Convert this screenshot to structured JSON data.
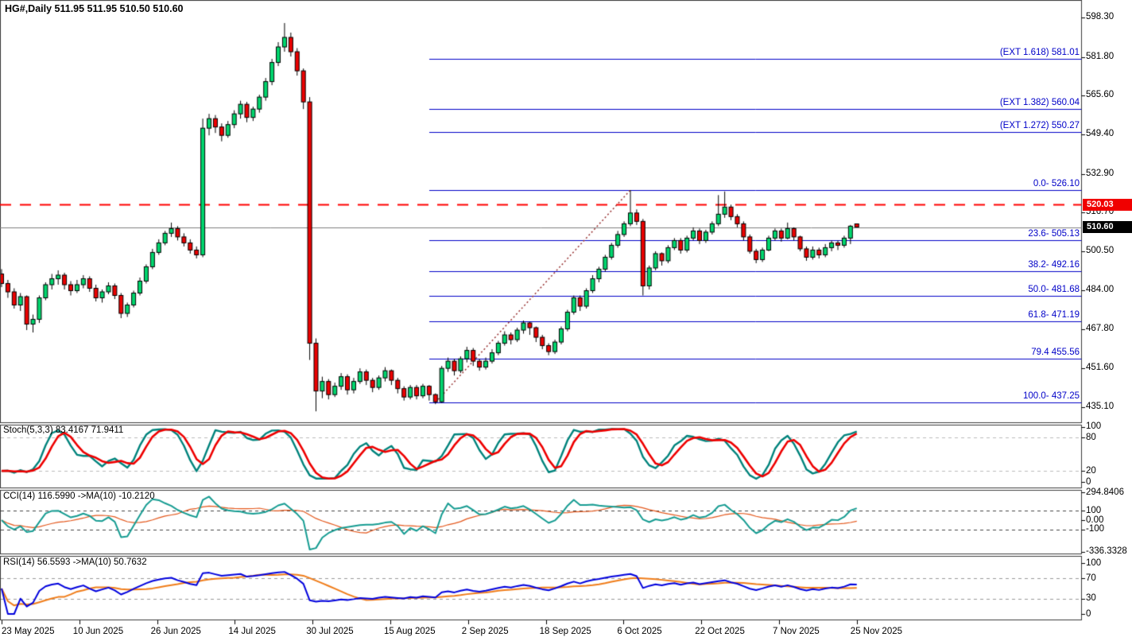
{
  "window": {
    "title_quote": "HG#,Daily  511.95 511.95 510.50 510.60"
  },
  "colors": {
    "bull": "#00d66e",
    "bear": "#ec0000",
    "candle_border": "#000000",
    "fib_line": "#0000c8",
    "resistance_line": "#ff0000",
    "current_line": "#808080",
    "trendline": "#993333",
    "stoch_main": "#00837c",
    "stoch_signal": "#ee0000",
    "cci_main": "#169c92",
    "cci_ma": "#e4571b",
    "rsi_main": "#0202dd",
    "rsi_ma": "#f07d1a",
    "badge_red_bg": "#f00000",
    "badge_black_bg": "#000000"
  },
  "price_axis": {
    "ticks": [
      "598.30",
      "581.80",
      "565.60",
      "549.40",
      "532.90",
      "516.70",
      "500.50",
      "484.00",
      "467.80",
      "451.60",
      "435.10"
    ],
    "badge_red": "520.03",
    "badge_current": "510.60"
  },
  "time_axis": {
    "labels": [
      "23 May 2025",
      "10 Jun 2025",
      "26 Jun 2025",
      "14 Jul 2025",
      "30 Jul 2025",
      "15 Aug 2025",
      "2 Sep 2025",
      "18 Sep 2025",
      "6 Oct 2025",
      "22 Oct 2025",
      "7 Nov 2025",
      "25 Nov 2025"
    ]
  },
  "fib": {
    "levels": [
      {
        "label": "(EXT 1.618)  581.01",
        "price": 581.01
      },
      {
        "label": "(EXT 1.382)  560.04",
        "price": 560.04
      },
      {
        "label": "(EXT 1.272)  550.27",
        "price": 550.27
      },
      {
        "label": "0.0- 526.10",
        "price": 526.1
      },
      {
        "label": "23.6- 505.13",
        "price": 505.13
      },
      {
        "label": "38.2- 492.16",
        "price": 492.16
      },
      {
        "label": "50.0- 481.68",
        "price": 481.68
      },
      {
        "label": "61.8- 471.19",
        "price": 471.19
      },
      {
        "label": "79.4 455.56",
        "price": 455.56
      },
      {
        "label": "100.0- 437.25",
        "price": 437.25
      }
    ]
  },
  "hlines": {
    "resistance_dashed_price": 520.03,
    "current_price": 510.6
  },
  "panels": {
    "stoch": {
      "header": "Stoch(5,3,3) 83.4167 71.9411",
      "axis": [
        "100",
        "80",
        "20",
        "0"
      ],
      "level_lines": [
        80,
        20
      ]
    },
    "cci": {
      "header": "CCI(14) 116.5990  ->MA(10) -10.2120",
      "axis": [
        "294.8406",
        "100",
        "0.00",
        "-100",
        "-336.3328"
      ],
      "level_lines": [
        100,
        -100
      ]
    },
    "rsi": {
      "header": "RSI(14) 56.5593  ->MA(10) 50.7632",
      "axis": [
        "100",
        "70",
        "30",
        "0"
      ],
      "level_lines": [
        70,
        30
      ]
    }
  },
  "chart_data": {
    "type": "candlestick",
    "symbol": "HG#",
    "timeframe": "Daily",
    "quote": {
      "open": 511.95,
      "high": 511.95,
      "low": 510.5,
      "close": 510.6
    },
    "x_labels": [
      "23 May 2025",
      "10 Jun 2025",
      "26 Jun 2025",
      "14 Jul 2025",
      "30 Jul 2025",
      "15 Aug 2025",
      "2 Sep 2025",
      "18 Sep 2025",
      "6 Oct 2025",
      "22 Oct 2025",
      "7 Nov 2025",
      "25 Nov 2025"
    ],
    "y_range": [
      428,
      601
    ],
    "grid": false,
    "fib_retracement": {
      "anchor_low": 437.25,
      "anchor_high": 526.1,
      "levels_pct": [
        0.0,
        23.6,
        38.2,
        50.0,
        61.8,
        79.4,
        100.0
      ],
      "extensions": [
        1.272,
        1.382,
        1.618
      ]
    },
    "indicator_params": {
      "stoch": [
        5,
        3,
        3
      ],
      "cci_period": 14,
      "cci_ma": 10,
      "rsi_period": 14,
      "rsi_ma": 10
    },
    "ohlc": [
      [
        491,
        493,
        485.5,
        487
      ],
      [
        487,
        488.5,
        481,
        483.5
      ],
      [
        483.5,
        485,
        476.5,
        478
      ],
      [
        478,
        483,
        475.5,
        481.5
      ],
      [
        481.5,
        482,
        467.5,
        470
      ],
      [
        470,
        474,
        466.5,
        472
      ],
      [
        472,
        482,
        470.5,
        481
      ],
      [
        481,
        487.5,
        480,
        486.5
      ],
      [
        486.5,
        491,
        484.5,
        489
      ],
      [
        489,
        492.5,
        486.5,
        490.5
      ],
      [
        490.5,
        491.5,
        484.5,
        486.5
      ],
      [
        486.5,
        488,
        482,
        484
      ],
      [
        484,
        488.5,
        483,
        486.5
      ],
      [
        486.5,
        490.5,
        485,
        489
      ],
      [
        489,
        490,
        483.5,
        485
      ],
      [
        485,
        486.5,
        479.5,
        481
      ],
      [
        481,
        484.5,
        479,
        483.5
      ],
      [
        483.5,
        487.5,
        482.5,
        486
      ],
      [
        486,
        487,
        480.5,
        482
      ],
      [
        482,
        483,
        472.5,
        474.5
      ],
      [
        474.5,
        479,
        473,
        478
      ],
      [
        478,
        484,
        477,
        483
      ],
      [
        483,
        489.5,
        482,
        488
      ],
      [
        488,
        495,
        487,
        494
      ],
      [
        494,
        501.5,
        493,
        500
      ],
      [
        500,
        505.5,
        499,
        504
      ],
      [
        504,
        509,
        503,
        508
      ],
      [
        508,
        512.5,
        506.5,
        510
      ],
      [
        510,
        511,
        505,
        506.5
      ],
      [
        506.5,
        508,
        502.5,
        504
      ],
      [
        504,
        505.5,
        499.5,
        501
      ],
      [
        501,
        502.5,
        497.5,
        499
      ],
      [
        499,
        556,
        498,
        552
      ],
      [
        552,
        558,
        549,
        556
      ],
      [
        556,
        557.5,
        550,
        552.5
      ],
      [
        552.5,
        554,
        546.5,
        549
      ],
      [
        549,
        555,
        548,
        553.5
      ],
      [
        553.5,
        559.5,
        552,
        558
      ],
      [
        558,
        563.5,
        556,
        562
      ],
      [
        562,
        563,
        554.5,
        556.5
      ],
      [
        556.5,
        561,
        555,
        560
      ],
      [
        560,
        566,
        558.5,
        565
      ],
      [
        565,
        573,
        563.5,
        571.5
      ],
      [
        571.5,
        581,
        570,
        579.5
      ],
      [
        579.5,
        588,
        578,
        586
      ],
      [
        586,
        596,
        584,
        590
      ],
      [
        590,
        592,
        582,
        584
      ],
      [
        584,
        585.5,
        574,
        576
      ],
      [
        576,
        577,
        560,
        563
      ],
      [
        563,
        565,
        455,
        462
      ],
      [
        462,
        464,
        433.5,
        442
      ],
      [
        442,
        448,
        439,
        446
      ],
      [
        446,
        447,
        438.5,
        440.5
      ],
      [
        440.5,
        445.5,
        439.5,
        444
      ],
      [
        444,
        449.5,
        442.5,
        448
      ],
      [
        448,
        449,
        440.5,
        442.5
      ],
      [
        442.5,
        447.5,
        441,
        446
      ],
      [
        446,
        451.5,
        445,
        450
      ],
      [
        450,
        451,
        444.5,
        446.5
      ],
      [
        446.5,
        447.5,
        441.5,
        443.5
      ],
      [
        443.5,
        448.5,
        442.5,
        447.5
      ],
      [
        447.5,
        452,
        446,
        450.5
      ],
      [
        450.5,
        451,
        444.5,
        446.5
      ],
      [
        446.5,
        447.5,
        441,
        443
      ],
      [
        443,
        444,
        438,
        439.5
      ],
      [
        439.5,
        444.5,
        438.5,
        443.5
      ],
      [
        443.5,
        444.5,
        438.5,
        440
      ],
      [
        440,
        445,
        439,
        444
      ],
      [
        444,
        444.5,
        438,
        440.5
      ],
      [
        440.5,
        441,
        436.5,
        437.5
      ],
      [
        437.5,
        452.5,
        437,
        451.5
      ],
      [
        451.5,
        456,
        450,
        454.5
      ],
      [
        454.5,
        455.5,
        448.5,
        450.5
      ],
      [
        450.5,
        456.5,
        449.5,
        455.5
      ],
      [
        455.5,
        460.5,
        454,
        459
      ],
      [
        459,
        460,
        452.5,
        454.5
      ],
      [
        454.5,
        455.5,
        450.5,
        452
      ],
      [
        452,
        456,
        451,
        454.5
      ],
      [
        454.5,
        459.5,
        453.5,
        458
      ],
      [
        458,
        463,
        457,
        462
      ],
      [
        462,
        467,
        461,
        465.5
      ],
      [
        465.5,
        466.5,
        461.5,
        463.5
      ],
      [
        463.5,
        468.5,
        462.5,
        467.5
      ],
      [
        467.5,
        471.5,
        466,
        470.5
      ],
      [
        470.5,
        471,
        465.5,
        468.5
      ],
      [
        468.5,
        469,
        462.5,
        464.5
      ],
      [
        464.5,
        465.5,
        459.5,
        461
      ],
      [
        461,
        462,
        457,
        458.5
      ],
      [
        458.5,
        463.5,
        457.5,
        462.5
      ],
      [
        462.5,
        469,
        461.5,
        468
      ],
      [
        468,
        476,
        467,
        475
      ],
      [
        475,
        482,
        474,
        481
      ],
      [
        481,
        482,
        475.5,
        477.5
      ],
      [
        477.5,
        485,
        476.5,
        484
      ],
      [
        484,
        490.5,
        483,
        489
      ],
      [
        489,
        494,
        487.5,
        493
      ],
      [
        493,
        499,
        492,
        498
      ],
      [
        498,
        504,
        497,
        503
      ],
      [
        503,
        509,
        502,
        507.5
      ],
      [
        507.5,
        513,
        506.5,
        512
      ],
      [
        512,
        526.1,
        511,
        516.5
      ],
      [
        516.5,
        518,
        511.5,
        513
      ],
      [
        513,
        514,
        482,
        486
      ],
      [
        486,
        494.5,
        484.5,
        493.5
      ],
      [
        493.5,
        500.5,
        492.5,
        499.5
      ],
      [
        499.5,
        500,
        494.5,
        496.5
      ],
      [
        496.5,
        503,
        495.5,
        502
      ],
      [
        502,
        506,
        501,
        505
      ],
      [
        505,
        506,
        499.5,
        501
      ],
      [
        501,
        507,
        500,
        506
      ],
      [
        506,
        510.5,
        505,
        509
      ],
      [
        509,
        510,
        503.5,
        505
      ],
      [
        505,
        509.5,
        504,
        508.5
      ],
      [
        508.5,
        513,
        507.5,
        512
      ],
      [
        512,
        524,
        511,
        516
      ],
      [
        516,
        525.5,
        514.5,
        519
      ],
      [
        519,
        520,
        513.5,
        515
      ],
      [
        515,
        516,
        510.5,
        512
      ],
      [
        512,
        513,
        505,
        506.5
      ],
      [
        506.5,
        507.5,
        499.5,
        500.5
      ],
      [
        500.5,
        501.5,
        495.5,
        497
      ],
      [
        497,
        502,
        496,
        501
      ],
      [
        501,
        507,
        500.5,
        506
      ],
      [
        506,
        510,
        505,
        509
      ],
      [
        509,
        510,
        504.5,
        506
      ],
      [
        506,
        512.5,
        505.5,
        510
      ],
      [
        510,
        510.5,
        505,
        506.5
      ],
      [
        506.5,
        507,
        500.5,
        501.5
      ],
      [
        501.5,
        502.5,
        496.5,
        498
      ],
      [
        498,
        502.5,
        497,
        501
      ],
      [
        501,
        502,
        497.5,
        499
      ],
      [
        499,
        503.5,
        498,
        502
      ],
      [
        502,
        505,
        500.5,
        504
      ],
      [
        504,
        505,
        501,
        503
      ],
      [
        503,
        507,
        502,
        506
      ],
      [
        506,
        511.5,
        503.5,
        511
      ],
      [
        511.95,
        511.95,
        510.5,
        510.6
      ]
    ]
  }
}
